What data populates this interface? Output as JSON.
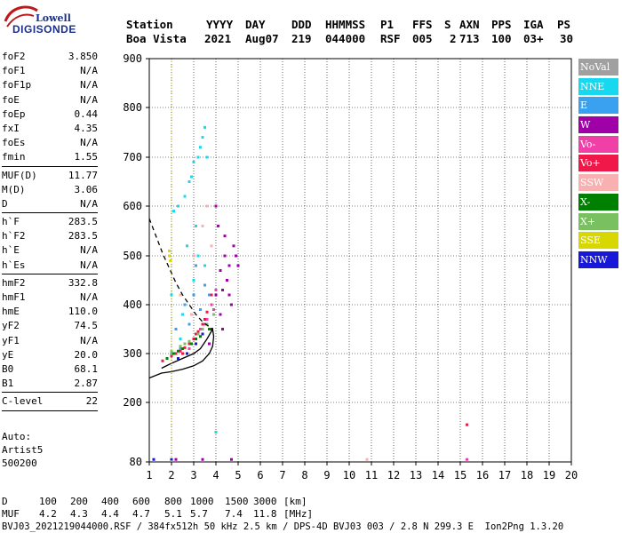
{
  "logo": {
    "line1": "Lowell",
    "line2": "DIGISONDE"
  },
  "header": {
    "row1": [
      "Station",
      "YYYY",
      "DAY",
      "DDD",
      "HHMMSS",
      "P1",
      "FFS",
      "S",
      "AXN",
      "PPS",
      "IGA",
      "PS"
    ],
    "row2": [
      "Boa Vista",
      "2021",
      "Aug07",
      "219",
      "044000",
      "RSF",
      "005",
      "2",
      "713",
      "100",
      "03+",
      "30"
    ]
  },
  "params": [
    {
      "name": "foF2",
      "value": "3.850"
    },
    {
      "name": "foF1",
      "value": "N/A"
    },
    {
      "name": "foF1p",
      "value": "N/A"
    },
    {
      "name": "foE",
      "value": "N/A"
    },
    {
      "name": "foEp",
      "value": "0.44"
    },
    {
      "name": "fxI",
      "value": "4.35"
    },
    {
      "name": "foEs",
      "value": "N/A"
    },
    {
      "name": "fmin",
      "value": "1.55"
    },
    {
      "sep": true
    },
    {
      "name": "MUF(D)",
      "value": "11.77"
    },
    {
      "name": "M(D)",
      "value": "3.06"
    },
    {
      "name": "D",
      "value": "N/A"
    },
    {
      "sep": true
    },
    {
      "name": "h`F",
      "value": "283.5"
    },
    {
      "name": "h`F2",
      "value": "283.5"
    },
    {
      "name": "h`E",
      "value": "N/A"
    },
    {
      "name": "h`Es",
      "value": "N/A"
    },
    {
      "sep": true
    },
    {
      "name": "hmF2",
      "value": "332.8"
    },
    {
      "name": "hmF1",
      "value": "N/A"
    },
    {
      "name": "hmE",
      "value": "110.0"
    },
    {
      "name": "yF2",
      "value": "74.5"
    },
    {
      "name": "yF1",
      "value": "N/A"
    },
    {
      "name": "yE",
      "value": "20.0"
    },
    {
      "name": "B0",
      "value": "68.1"
    },
    {
      "name": "B1",
      "value": "2.87"
    },
    {
      "sep": true
    },
    {
      "name": "C-level",
      "value": "22"
    },
    {
      "sep": true
    }
  ],
  "auto": {
    "line1": "Auto:",
    "line2": "Artist5",
    "line3": "500200"
  },
  "legend": [
    {
      "label": "NoVal",
      "color": "#a0a0a0"
    },
    {
      "label": "NNE",
      "color": "#18d8f0"
    },
    {
      "label": "E",
      "color": "#3aa0f0"
    },
    {
      "label": "W",
      "color": "#a000a8"
    },
    {
      "label": "Vo-",
      "color": "#f040a8"
    },
    {
      "label": "Vo+",
      "color": "#f01848"
    },
    {
      "label": "SSW",
      "color": "#f8b0b0"
    },
    {
      "label": "X-",
      "color": "#008000"
    },
    {
      "label": "X+",
      "color": "#78c060"
    },
    {
      "label": "SSE",
      "color": "#d8d800"
    },
    {
      "label": "NNW",
      "color": "#1818d8"
    }
  ],
  "chart_data": {
    "type": "scatter",
    "x_ticks": [
      "1",
      "2",
      "3",
      "4",
      "5",
      "6",
      "7",
      "8",
      "9",
      "10",
      "11",
      "12",
      "13",
      "14",
      "15",
      "16",
      "17",
      "18",
      "19",
      "20"
    ],
    "y_ticks": [
      "80",
      "200",
      "300",
      "400",
      "500",
      "600",
      "700",
      "800",
      "900"
    ],
    "xlim": [
      1,
      20
    ],
    "y_breaks": [
      80,
      200,
      300,
      400,
      500,
      600,
      700,
      800,
      900
    ],
    "grid": true,
    "series": [
      {
        "name": "NNE",
        "color": "#18d8f0",
        "points": [
          [
            2.6,
            620
          ],
          [
            2.8,
            650
          ],
          [
            3.0,
            690
          ],
          [
            3.2,
            700
          ],
          [
            2.3,
            600
          ],
          [
            3.4,
            740
          ],
          [
            3.5,
            760
          ],
          [
            2.1,
            590
          ],
          [
            2.9,
            660
          ],
          [
            3.3,
            720
          ],
          [
            2.0,
            420
          ],
          [
            2.5,
            380
          ],
          [
            3.0,
            450
          ],
          [
            3.2,
            500
          ],
          [
            2.7,
            520
          ],
          [
            3.5,
            480
          ],
          [
            2.4,
            330
          ],
          [
            3.1,
            560
          ],
          [
            3.6,
            700
          ],
          [
            4.0,
            140
          ]
        ]
      },
      {
        "name": "E",
        "color": "#3aa0f0",
        "points": [
          [
            2.2,
            350
          ],
          [
            2.6,
            400
          ],
          [
            3.0,
            420
          ],
          [
            2.8,
            360
          ],
          [
            3.3,
            390
          ],
          [
            2.4,
            310
          ],
          [
            3.5,
            440
          ],
          [
            3.7,
            420
          ],
          [
            2.0,
            300
          ],
          [
            3.1,
            480
          ]
        ]
      },
      {
        "name": "W",
        "color": "#a000a8",
        "points": [
          [
            4.0,
            420
          ],
          [
            4.2,
            470
          ],
          [
            4.4,
            500
          ],
          [
            4.6,
            480
          ],
          [
            4.8,
            520
          ],
          [
            3.9,
            380
          ],
          [
            4.3,
            430
          ],
          [
            4.1,
            560
          ],
          [
            4.5,
            450
          ],
          [
            4.7,
            400
          ],
          [
            3.8,
            350
          ],
          [
            4.0,
            600
          ],
          [
            4.2,
            380
          ],
          [
            4.9,
            500
          ],
          [
            5.0,
            480
          ],
          [
            4.4,
            540
          ],
          [
            4.6,
            420
          ],
          [
            3.7,
            320
          ],
          [
            4.3,
            350
          ],
          [
            2.2,
            85
          ],
          [
            3.4,
            85
          ],
          [
            4.7,
            85
          ]
        ]
      },
      {
        "name": "Vo-",
        "color": "#f040a8",
        "points": [
          [
            3.0,
            330
          ],
          [
            3.3,
            350
          ],
          [
            3.6,
            370
          ],
          [
            3.8,
            400
          ],
          [
            4.0,
            430
          ],
          [
            2.8,
            310
          ],
          [
            3.5,
            360
          ],
          [
            3.9,
            390
          ],
          [
            15.3,
            85
          ]
        ]
      },
      {
        "name": "Vo+",
        "color": "#f01848",
        "points": [
          [
            1.6,
            285
          ],
          [
            1.8,
            290
          ],
          [
            2.0,
            295
          ],
          [
            2.2,
            300
          ],
          [
            2.4,
            305
          ],
          [
            2.6,
            312
          ],
          [
            2.8,
            320
          ],
          [
            3.0,
            330
          ],
          [
            3.2,
            345
          ],
          [
            3.4,
            360
          ],
          [
            3.6,
            385
          ],
          [
            3.8,
            420
          ],
          [
            2.5,
            300
          ],
          [
            3.1,
            340
          ],
          [
            3.5,
            370
          ],
          [
            15.3,
            155
          ]
        ]
      },
      {
        "name": "SSW",
        "color": "#f8b0b0",
        "points": [
          [
            2.4,
            420
          ],
          [
            3.0,
            500
          ],
          [
            3.4,
            560
          ],
          [
            3.8,
            520
          ],
          [
            2.9,
            380
          ],
          [
            3.6,
            600
          ],
          [
            10.8,
            85
          ]
        ]
      },
      {
        "name": "X-",
        "color": "#008000",
        "points": [
          [
            1.8,
            290
          ],
          [
            2.1,
            300
          ],
          [
            2.5,
            310
          ],
          [
            2.9,
            320
          ],
          [
            3.3,
            335
          ],
          [
            3.7,
            350
          ],
          [
            2.3,
            305
          ],
          [
            3.1,
            330
          ]
        ]
      },
      {
        "name": "X+",
        "color": "#78c060",
        "points": [
          [
            2.0,
            305
          ],
          [
            2.4,
            315
          ],
          [
            2.8,
            325
          ],
          [
            3.2,
            340
          ],
          [
            3.6,
            360
          ],
          [
            3.9,
            380
          ],
          [
            2.6,
            320
          ],
          [
            3.4,
            350
          ]
        ]
      },
      {
        "name": "SSE",
        "color": "#d8d800",
        "points": [
          [
            1.9,
            500
          ],
          [
            1.9,
            510
          ],
          [
            1.95,
            490
          ]
        ]
      },
      {
        "name": "NNW",
        "color": "#1818d8",
        "points": [
          [
            2.3,
            290
          ],
          [
            2.7,
            300
          ],
          [
            3.1,
            320
          ],
          [
            3.4,
            340
          ],
          [
            1.2,
            85
          ],
          [
            2.0,
            85
          ]
        ]
      }
    ],
    "profile_solid": [
      [
        1.55,
        270
      ],
      [
        2.0,
        280
      ],
      [
        2.5,
        290
      ],
      [
        3.0,
        300
      ],
      [
        3.3,
        310
      ],
      [
        3.6,
        330
      ],
      [
        3.85,
        350
      ],
      [
        3.9,
        335
      ],
      [
        3.85,
        315
      ],
      [
        3.7,
        300
      ],
      [
        3.4,
        285
      ],
      [
        3.0,
        275
      ],
      [
        2.5,
        268
      ],
      [
        2.0,
        263
      ],
      [
        1.55,
        260
      ],
      [
        1.0,
        250
      ]
    ],
    "profile_dashed": [
      [
        1.0,
        575
      ],
      [
        1.3,
        540
      ],
      [
        1.6,
        505
      ],
      [
        1.9,
        475
      ],
      [
        2.2,
        445
      ],
      [
        2.5,
        420
      ],
      [
        2.8,
        400
      ],
      [
        3.1,
        380
      ],
      [
        3.4,
        365
      ],
      [
        3.7,
        355
      ],
      [
        3.85,
        350
      ]
    ],
    "marker_line": [
      [
        2.0,
        80
      ],
      [
        2.0,
        900
      ]
    ]
  },
  "bottom": {
    "d_row": [
      "D",
      "100",
      "200",
      "400",
      "600",
      "800",
      "1000",
      "1500",
      "3000",
      "[km]"
    ],
    "muf_row": [
      "MUF",
      "4.2",
      "4.3",
      "4.4",
      "4.7",
      "5.1",
      "5.7",
      "7.4",
      "11.8",
      "[MHz]"
    ],
    "footer": "BVJ03_2021219044000.RSF / 384fx512h 50 kHz 2.5 km / DPS-4D BVJ03 003 / 2.8 N 299.3 E  Ion2Png 1.3.20"
  }
}
